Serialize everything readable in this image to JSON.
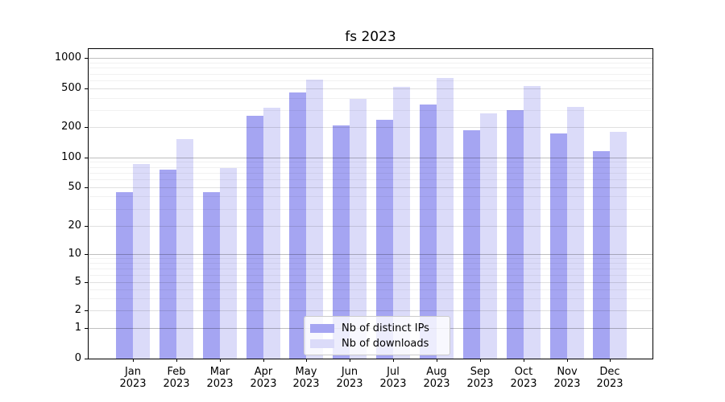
{
  "title": "fs 2023",
  "legend": {
    "items": [
      {
        "label": "Nb of distinct IPs",
        "color": "#a5a5f2"
      },
      {
        "label": "Nb of downloads",
        "color": "#dbdbf9"
      }
    ]
  },
  "colors": {
    "ips_bar": "#a5a5f2",
    "downloads_bar": "#dbdbf9",
    "axis": "#000000",
    "background": "#ffffff"
  },
  "chart_data": {
    "type": "bar",
    "title": "fs 2023",
    "categories": [
      "Jan",
      "Feb",
      "Mar",
      "Apr",
      "May",
      "Jun",
      "Jul",
      "Aug",
      "Sep",
      "Oct",
      "Nov",
      "Dec"
    ],
    "tick_year": "2023",
    "series": [
      {
        "name": "Nb of distinct IPs",
        "color": "#a5a5f2",
        "values": [
          44,
          75,
          44,
          260,
          455,
          208,
          237,
          345,
          188,
          300,
          174,
          116
        ]
      },
      {
        "name": "Nb of downloads",
        "color": "#dbdbf9",
        "values": [
          86,
          151,
          78,
          320,
          610,
          392,
          515,
          640,
          278,
          528,
          325,
          179
        ]
      }
    ],
    "xlabel": "",
    "ylabel": "",
    "yscale": "symlog",
    "yticks": [
      0,
      1,
      2,
      5,
      10,
      20,
      50,
      100,
      200,
      500,
      1000
    ],
    "yminorticks": [
      3,
      4,
      6,
      7,
      8,
      9,
      30,
      40,
      60,
      70,
      80,
      90,
      300,
      400,
      600,
      700,
      800,
      900
    ],
    "ylim": [
      0,
      1200
    ],
    "grid": true,
    "grid_on_top": true,
    "legend_position": "lower center"
  }
}
